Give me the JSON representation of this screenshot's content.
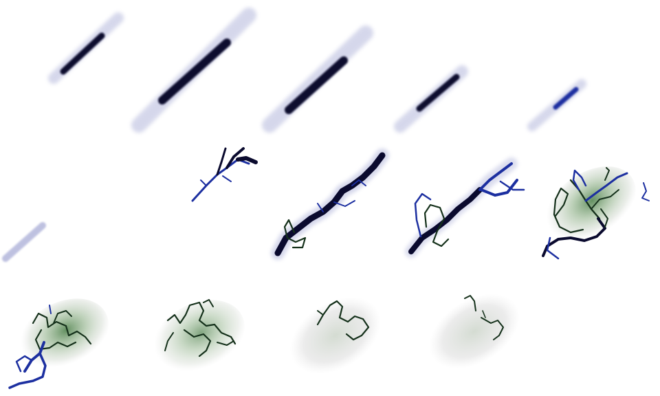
{
  "colors": {
    "background": "#ffffff",
    "ink_dark": "#0a0a2e",
    "ink_blue": "#1c2fa0",
    "haze_blue": "#8a90c8",
    "vine_dark": "#14301a",
    "vine_green": "#3f6b3a",
    "glow_green": "#4f8a48",
    "haze_gray": "#b5b5b5"
  },
  "sprite_sheet": {
    "rows": 3,
    "frames": [
      {
        "kind": "streak",
        "intensity": 0.55
      },
      {
        "kind": "streak",
        "intensity": 0.9
      },
      {
        "kind": "streak",
        "intensity": 0.85
      },
      {
        "kind": "streak",
        "intensity": 0.6
      },
      {
        "kind": "streak",
        "intensity": 0.4
      },
      {
        "kind": "streak",
        "intensity": 0.2
      },
      {
        "kind": "branches",
        "intensity": 0.5
      },
      {
        "kind": "bolt",
        "intensity": 1.0
      },
      {
        "kind": "bolt",
        "intensity": 0.9
      },
      {
        "kind": "burst",
        "intensity": 0.8
      },
      {
        "kind": "tangle",
        "intensity": 0.75
      },
      {
        "kind": "tangle",
        "intensity": 0.55
      },
      {
        "kind": "tangle",
        "intensity": 0.4
      },
      {
        "kind": "tangle",
        "intensity": 0.25
      }
    ]
  }
}
